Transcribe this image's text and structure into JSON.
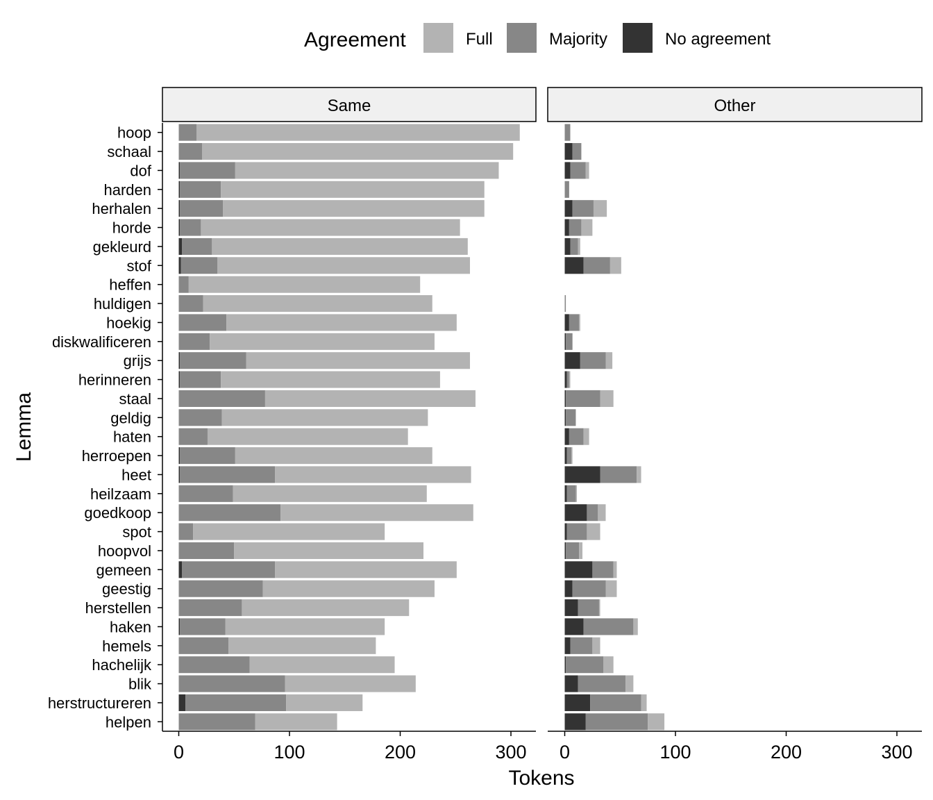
{
  "chart_data": {
    "type": "bar",
    "orientation": "horizontal",
    "stacked": true,
    "xlabel": "Tokens",
    "ylabel": "Lemma",
    "xlim": [
      0,
      325
    ],
    "xticks": [
      0,
      100,
      200,
      300
    ],
    "legend": {
      "title": "Agreement",
      "position": "top",
      "entries": [
        {
          "name": "Full",
          "color": "#b3b3b3"
        },
        {
          "name": "Majority",
          "color": "#878787"
        },
        {
          "name": "No agreement",
          "color": "#333333"
        }
      ]
    },
    "panels": [
      "Same",
      "Other"
    ],
    "categories": [
      "hoop",
      "schaal",
      "dof",
      "harden",
      "herhalen",
      "horde",
      "gekleurd",
      "stof",
      "heffen",
      "huldigen",
      "hoekig",
      "diskwalificeren",
      "grijs",
      "herinneren",
      "staal",
      "geldig",
      "haten",
      "herroepen",
      "heet",
      "heilzaam",
      "goedkoop",
      "spot",
      "hoopvol",
      "gemeen",
      "geestig",
      "herstellen",
      "haken",
      "hemels",
      "hachelijk",
      "blik",
      "herstructureren",
      "helpen"
    ],
    "series": [
      {
        "panel": "Same",
        "name": "No agreement",
        "values": [
          0,
          0,
          1,
          1,
          1,
          1,
          3,
          2,
          0,
          0,
          0,
          0,
          1,
          1,
          0,
          0,
          0,
          1,
          1,
          0,
          0,
          0,
          0,
          3,
          0,
          0,
          1,
          0,
          0,
          0,
          6,
          0
        ]
      },
      {
        "panel": "Same",
        "name": "Majority",
        "values": [
          16,
          21,
          50,
          37,
          39,
          19,
          27,
          33,
          9,
          22,
          43,
          28,
          60,
          37,
          78,
          39,
          26,
          50,
          86,
          49,
          92,
          13,
          50,
          84,
          76,
          57,
          41,
          45,
          64,
          96,
          91,
          69
        ]
      },
      {
        "panel": "Same",
        "name": "Full",
        "values": [
          292,
          281,
          238,
          238,
          236,
          234,
          231,
          228,
          209,
          207,
          208,
          203,
          202,
          198,
          190,
          186,
          181,
          178,
          177,
          175,
          174,
          173,
          171,
          164,
          155,
          151,
          144,
          133,
          131,
          118,
          69,
          74
        ]
      },
      {
        "panel": "Other",
        "name": "No agreement",
        "values": [
          0,
          7,
          5,
          0,
          7,
          4,
          5,
          17,
          0,
          0,
          4,
          1,
          14,
          2,
          1,
          1,
          4,
          2,
          32,
          2,
          20,
          2,
          1,
          25,
          7,
          12,
          17,
          5,
          1,
          12,
          23,
          19
        ]
      },
      {
        "panel": "Other",
        "name": "Majority",
        "values": [
          5,
          8,
          14,
          4,
          19,
          11,
          7,
          24,
          0,
          1,
          9,
          6,
          23,
          2,
          31,
          9,
          13,
          4,
          33,
          8,
          10,
          18,
          12,
          19,
          30,
          19,
          45,
          20,
          34,
          43,
          46,
          56
        ]
      },
      {
        "panel": "Other",
        "name": "Full",
        "values": [
          0,
          0,
          3,
          0,
          12,
          10,
          2,
          10,
          0,
          0,
          1,
          0,
          6,
          1,
          12,
          0,
          5,
          1,
          4,
          1,
          7,
          12,
          3,
          3,
          10,
          1,
          4,
          7,
          9,
          7,
          5,
          15
        ]
      }
    ]
  }
}
